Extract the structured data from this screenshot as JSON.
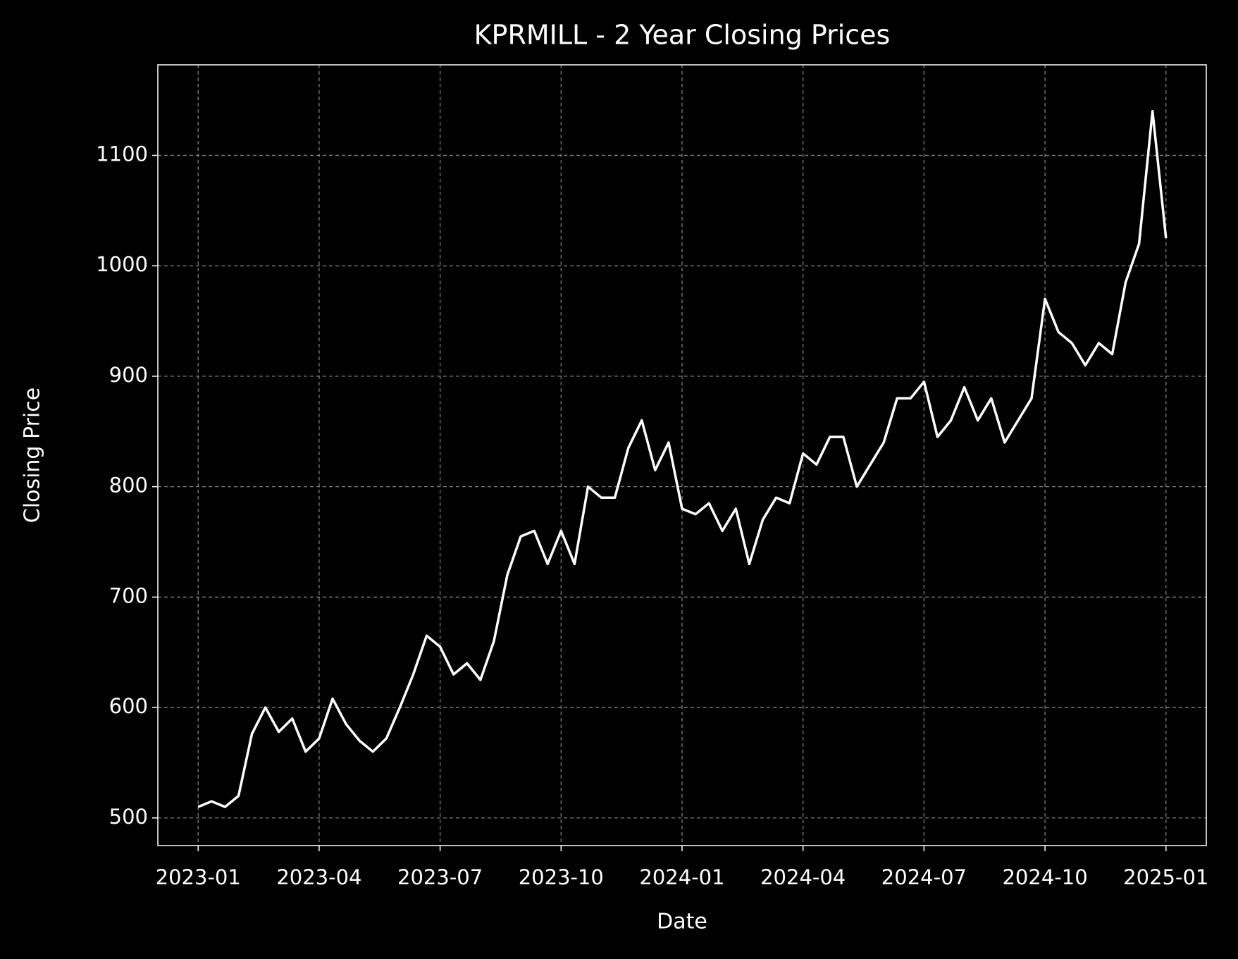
{
  "chart_data": {
    "type": "line",
    "title": "KPRMILL - 2 Year Closing Prices",
    "x_label": "Date",
    "y_label": "Closing Price",
    "x": [
      "2023-01",
      "2023-01",
      "2023-01",
      "2023-02",
      "2023-02",
      "2023-02",
      "2023-03",
      "2023-03",
      "2023-03",
      "2023-04",
      "2023-04",
      "2023-04",
      "2023-05",
      "2023-05",
      "2023-05",
      "2023-06",
      "2023-06",
      "2023-06",
      "2023-07",
      "2023-07",
      "2023-07",
      "2023-08",
      "2023-08",
      "2023-08",
      "2023-09",
      "2023-09",
      "2023-09",
      "2023-10",
      "2023-10",
      "2023-10",
      "2023-11",
      "2023-11",
      "2023-11",
      "2023-12",
      "2023-12",
      "2023-12",
      "2024-01",
      "2024-01",
      "2024-01",
      "2024-02",
      "2024-02",
      "2024-02",
      "2024-03",
      "2024-03",
      "2024-03",
      "2024-04",
      "2024-04",
      "2024-04",
      "2024-05",
      "2024-05",
      "2024-05",
      "2024-06",
      "2024-06",
      "2024-06",
      "2024-07",
      "2024-07",
      "2024-07",
      "2024-08",
      "2024-08",
      "2024-08",
      "2024-09",
      "2024-09",
      "2024-09",
      "2024-10",
      "2024-10",
      "2024-10",
      "2024-11",
      "2024-11",
      "2024-11",
      "2024-12",
      "2024-12",
      "2024-12",
      "2025-01"
    ],
    "series": [
      {
        "name": "Close",
        "color": "#ffffff",
        "values": [
          510,
          515,
          510,
          520,
          576,
          600,
          578,
          590,
          560,
          572,
          608,
          585,
          570,
          560,
          572,
          600,
          630,
          665,
          655,
          630,
          640,
          625,
          660,
          720,
          755,
          760,
          730,
          760,
          730,
          800,
          790,
          790,
          835,
          860,
          815,
          840,
          780,
          775,
          785,
          760,
          780,
          730,
          770,
          790,
          785,
          830,
          820,
          845,
          845,
          800,
          820,
          840,
          880,
          880,
          895,
          845,
          860,
          890,
          860,
          880,
          840,
          860,
          880,
          970,
          940,
          930,
          910,
          930,
          920,
          985,
          1020,
          1140,
          1025
        ]
      }
    ],
    "xlim": [
      "2022-12",
      "2025-02"
    ],
    "xticks": [
      "2023-01",
      "2023-04",
      "2023-07",
      "2023-10",
      "2024-01",
      "2024-04",
      "2024-07",
      "2024-10",
      "2025-01"
    ],
    "ylim": [
      475,
      1182
    ],
    "yticks": [
      500,
      600,
      700,
      800,
      900,
      1000,
      1100
    ],
    "grid": true
  }
}
